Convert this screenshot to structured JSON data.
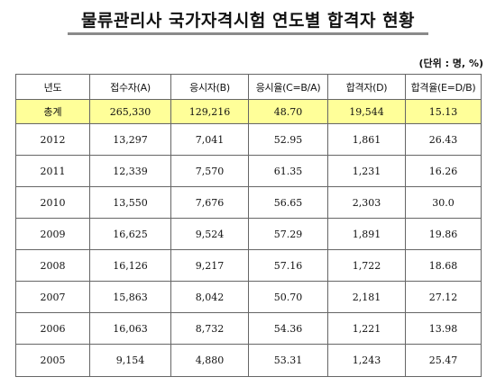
{
  "title": "물류관리사 국가자격시험 연도별 합격자 현황",
  "unit_note": "(단위 : 명, %)",
  "table": {
    "headers": [
      "년도",
      "접수자(A)",
      "응시자(B)",
      "응시율(C=B/A)",
      "합격자(D)",
      "합격율(E=D/B)"
    ],
    "rows": [
      [
        "총계",
        "265,330",
        "129,216",
        "48.70",
        "19,544",
        "15.13"
      ],
      [
        "2012",
        "13,297",
        "7,041",
        "52.95",
        "1,861",
        "26.43"
      ],
      [
        "2011",
        "12,339",
        "7,570",
        "61.35",
        "1,231",
        "16.26"
      ],
      [
        "2010",
        "13,550",
        "7,676",
        "56.65",
        "2,303",
        "30.0"
      ],
      [
        "2009",
        "16,625",
        "9,524",
        "57.29",
        "1,891",
        "19.86"
      ],
      [
        "2008",
        "16,126",
        "9,217",
        "57.16",
        "1,722",
        "18.68"
      ],
      [
        "2007",
        "15,863",
        "8,042",
        "50.70",
        "2,181",
        "27.12"
      ],
      [
        "2006",
        "16,063",
        "8,732",
        "54.36",
        "1,221",
        "13.98"
      ],
      [
        "2005",
        "9,154",
        "4,880",
        "53.31",
        "1,243",
        "25.47"
      ]
    ]
  },
  "colors": {
    "total_row_bg": "#ffff99",
    "border": "#666666",
    "title_rule": "#8a8a8a"
  }
}
